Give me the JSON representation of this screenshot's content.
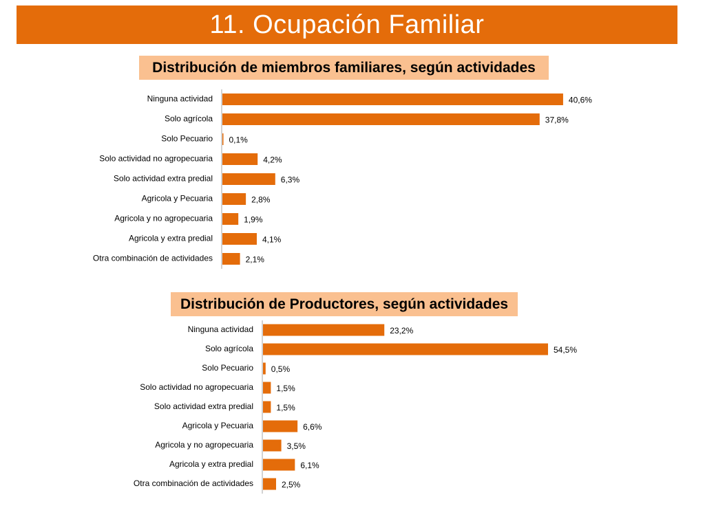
{
  "page": {
    "title": "11. Ocupación Familiar"
  },
  "colors": {
    "accent": "#E46C0A",
    "subtitle_bg": "#FAC090",
    "bar": "#E46C0A",
    "axis": "#A6A6A6"
  },
  "chart_data": [
    {
      "type": "bar",
      "orientation": "horizontal",
      "title": "Distribución de miembros familiares, según actividades",
      "categories": [
        "Ninguna actividad",
        "Solo agrícola",
        "Solo Pecuario",
        "Solo actividad no agropecuaria",
        "Solo actividad extra predial",
        "Agricola y Pecuaria",
        "Agricola y no agropecuaria",
        "Agricola y extra predial",
        "Otra combinación de actividades"
      ],
      "values": [
        40.6,
        37.8,
        0.1,
        4.2,
        6.3,
        2.8,
        1.9,
        4.1,
        2.1
      ],
      "value_labels": [
        "40,6%",
        "37,8%",
        "0,1%",
        "4,2%",
        "6,3%",
        "2,8%",
        "1,9%",
        "4,1%",
        "2,1%"
      ],
      "xlim": [
        0,
        42
      ],
      "grid": false,
      "legend": "none"
    },
    {
      "type": "bar",
      "orientation": "horizontal",
      "title": "Distribución de Productores, según actividades",
      "categories": [
        "Ninguna actividad",
        "Solo agrícola",
        "Solo Pecuario",
        "Solo actividad no agropecuaria",
        "Solo actividad extra predial",
        "Agricola y Pecuaria",
        "Agricola y no agropecuaria",
        "Agricola y extra predial",
        "Otra combinación de actividades"
      ],
      "values": [
        23.2,
        54.5,
        0.5,
        1.5,
        1.5,
        6.6,
        3.5,
        6.1,
        2.5
      ],
      "value_labels": [
        "23,2%",
        "54,5%",
        "0,5%",
        "1,5%",
        "1,5%",
        "6,6%",
        "3,5%",
        "6,1%",
        "2,5%"
      ],
      "xlim": [
        0,
        57
      ],
      "grid": false,
      "legend": "none"
    }
  ]
}
